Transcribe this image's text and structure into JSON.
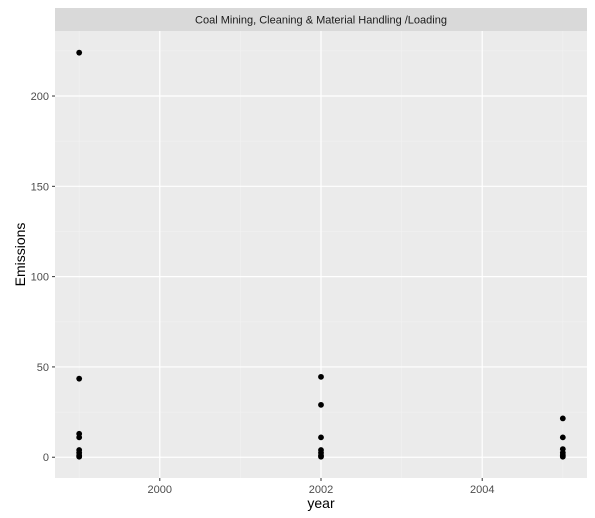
{
  "chart_data": {
    "type": "scatter",
    "facet_label": "Coal Mining, Cleaning & Material Handling /Loading",
    "xlabel": "year",
    "ylabel": "Emissions",
    "xlim": [
      1998.7,
      2005.3
    ],
    "ylim": [
      -11.5,
      236
    ],
    "x_ticks": [
      2000,
      2002,
      2004
    ],
    "y_ticks": [
      0,
      50,
      100,
      150,
      200
    ],
    "x_tick_labels": [
      "2000",
      "2002",
      "2004"
    ],
    "y_tick_labels": [
      "0",
      "50",
      "100",
      "150",
      "200"
    ],
    "grid": true,
    "legend": "none",
    "colors": {
      "panel": "#ebebeb",
      "grid_major": "#ffffff",
      "grid_minor": "#f2f2f2",
      "strip": "#d9d9d9",
      "point": "#000000"
    },
    "points": [
      {
        "x": 1999,
        "y": 224
      },
      {
        "x": 1999,
        "y": 43.5
      },
      {
        "x": 1999,
        "y": 13
      },
      {
        "x": 1999,
        "y": 11
      },
      {
        "x": 1999,
        "y": 4
      },
      {
        "x": 1999,
        "y": 2.5
      },
      {
        "x": 1999,
        "y": 1
      },
      {
        "x": 1999,
        "y": 0.3
      },
      {
        "x": 2002,
        "y": 44.5
      },
      {
        "x": 2002,
        "y": 29
      },
      {
        "x": 2002,
        "y": 11
      },
      {
        "x": 2002,
        "y": 4
      },
      {
        "x": 2002,
        "y": 2.5
      },
      {
        "x": 2002,
        "y": 1
      },
      {
        "x": 2002,
        "y": 0.3
      },
      {
        "x": 2005,
        "y": 21.5
      },
      {
        "x": 2005,
        "y": 11
      },
      {
        "x": 2005,
        "y": 4.5
      },
      {
        "x": 2005,
        "y": 2.5
      },
      {
        "x": 2005,
        "y": 1.2
      },
      {
        "x": 2005,
        "y": 0.3
      }
    ]
  }
}
